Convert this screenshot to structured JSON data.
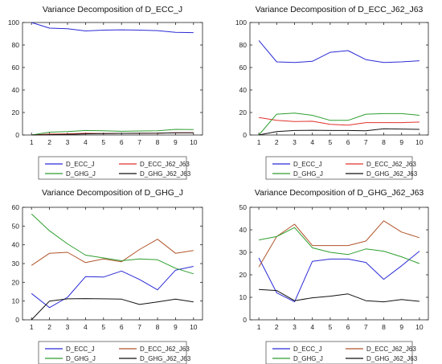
{
  "colors": {
    "D_ECC_J": "#2b2bd6",
    "D_ECC_J62_J63": "#e0322b",
    "D_GHG_J": "#2e9e2e",
    "D_GHG_J62_J63": "#111111",
    "D_ECC_J62_J63_alt": "#b0552b"
  },
  "chart_data": [
    {
      "type": "line",
      "title": "Variance Decomposition of D_ECC_J",
      "x": [
        1,
        2,
        3,
        4,
        5,
        6,
        7,
        8,
        9,
        10
      ],
      "ylim": [
        0,
        100
      ],
      "yticks": [
        0,
        20,
        40,
        60,
        80,
        100
      ],
      "grid": false,
      "legend_position": "bottom",
      "series": [
        {
          "name": "D_ECC_J",
          "color_key": "D_ECC_J",
          "values": [
            100,
            95,
            94.5,
            92.5,
            93.2,
            93.5,
            93.2,
            92.8,
            91.2,
            91.0
          ]
        },
        {
          "name": "D_ECC_J62_J63",
          "color_key": "D_ECC_J62_J63",
          "values": [
            0,
            0.8,
            1.0,
            1.5,
            1.3,
            1.4,
            1.5,
            1.6,
            2.0,
            2.0
          ]
        },
        {
          "name": "D_GHG_J",
          "color_key": "D_GHG_J",
          "values": [
            0,
            2.5,
            3.0,
            4.0,
            3.8,
            3.3,
            3.6,
            3.8,
            5.0,
            4.8
          ]
        },
        {
          "name": "D_GHG_J62_J63",
          "color_key": "D_GHG_J62_J63",
          "values": [
            0,
            0.3,
            0.5,
            1.0,
            1.2,
            1.4,
            1.5,
            1.6,
            2.0,
            2.0
          ]
        }
      ]
    },
    {
      "type": "line",
      "title": "Variance Decomposition of D_ECC_J62_J63",
      "x": [
        1,
        2,
        3,
        4,
        5,
        6,
        7,
        8,
        9,
        10
      ],
      "ylim": [
        0,
        100
      ],
      "yticks": [
        0,
        20,
        40,
        60,
        80,
        100
      ],
      "grid": false,
      "legend_position": "bottom",
      "series": [
        {
          "name": "D_ECC_J",
          "color_key": "D_ECC_J",
          "values": [
            84,
            65,
            64.5,
            65.5,
            73.5,
            75,
            67,
            64.5,
            65,
            66
          ]
        },
        {
          "name": "D_ECC_J62_J63",
          "color_key": "D_ECC_J62_J63",
          "values": [
            15.5,
            13,
            12,
            12.2,
            9.5,
            8.8,
            11,
            11,
            11,
            11.5
          ]
        },
        {
          "name": "D_GHG_J",
          "color_key": "D_GHG_J",
          "values": [
            0,
            18.5,
            19.5,
            17.5,
            13,
            13,
            18.5,
            19,
            19,
            17.5
          ]
        },
        {
          "name": "D_GHG_J62_J63",
          "color_key": "D_GHG_J62_J63",
          "values": [
            0,
            3.0,
            4.0,
            4.2,
            4.0,
            4.0,
            3.8,
            5.5,
            5.3,
            5.0
          ]
        }
      ]
    },
    {
      "type": "line",
      "title": "Variance Decomposition of D_GHG_J",
      "x": [
        1,
        2,
        3,
        4,
        5,
        6,
        7,
        8,
        9,
        10
      ],
      "ylim": [
        0,
        60
      ],
      "yticks": [
        0,
        10,
        20,
        30,
        40,
        50,
        60
      ],
      "grid": false,
      "legend_position": "bottom",
      "series": [
        {
          "name": "D_ECC_J",
          "color_key": "D_ECC_J",
          "values": [
            14,
            6.5,
            12,
            23,
            22.8,
            26,
            21.5,
            16,
            26.5,
            28.5
          ]
        },
        {
          "name": "D_ECC_J62_J63",
          "color_key": "D_ECC_J62_J63_alt",
          "values": [
            29,
            35.5,
            36,
            30.5,
            32.5,
            31,
            37.5,
            43,
            35.5,
            37
          ]
        },
        {
          "name": "D_GHG_J",
          "color_key": "D_GHG_J",
          "values": [
            56.5,
            47.5,
            40.5,
            34.5,
            33,
            31.5,
            32.5,
            32,
            27.5,
            24.5
          ]
        },
        {
          "name": "D_GHG_J62_J63",
          "color_key": "D_GHG_J62_J63",
          "values": [
            0,
            10,
            11.2,
            11.3,
            11.2,
            11,
            8.2,
            9.5,
            11,
            9.5
          ]
        }
      ]
    },
    {
      "type": "line",
      "title": "Variance Decomposition of D_GHG_J62_J63",
      "x": [
        1,
        2,
        3,
        4,
        5,
        6,
        7,
        8,
        9,
        10
      ],
      "ylim": [
        0,
        50
      ],
      "yticks": [
        0,
        10,
        20,
        30,
        40,
        50
      ],
      "grid": false,
      "legend_position": "bottom",
      "series": [
        {
          "name": "D_ECC_J",
          "color_key": "D_ECC_J",
          "values": [
            27.5,
            12,
            8,
            26,
            27,
            27,
            25.5,
            18,
            24,
            30.5
          ]
        },
        {
          "name": "D_ECC_J62_J63",
          "color_key": "D_ECC_J62_J63_alt",
          "values": [
            23.5,
            37,
            42.5,
            33,
            33,
            33,
            35,
            44,
            39,
            36.5
          ]
        },
        {
          "name": "D_GHG_J",
          "color_key": "D_GHG_J",
          "values": [
            35.5,
            37,
            41,
            32,
            30,
            29,
            31.5,
            30.5,
            28,
            25
          ]
        },
        {
          "name": "D_GHG_J62_J63",
          "color_key": "D_GHG_J62_J63",
          "values": [
            13.5,
            13,
            8.5,
            9.8,
            10.5,
            11.5,
            8.5,
            8,
            9,
            8.2
          ]
        }
      ]
    }
  ]
}
